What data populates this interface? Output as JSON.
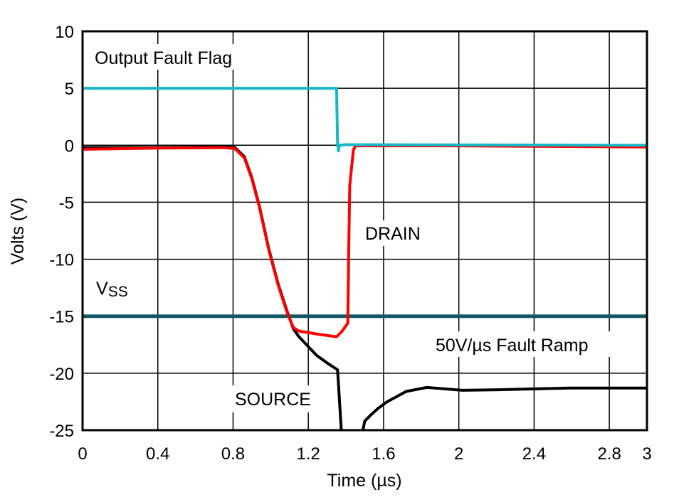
{
  "chart_data": {
    "type": "line",
    "title": "",
    "xlabel": "Time (µs)",
    "ylabel": "Volts (V)",
    "xlim": [
      0,
      3
    ],
    "ylim": [
      -25,
      10
    ],
    "grid": true,
    "x_ticks": [
      {
        "value": 0,
        "label": "0"
      },
      {
        "value": 0.4,
        "label": "0.4"
      },
      {
        "value": 0.8,
        "label": "0.8"
      },
      {
        "value": 1.2,
        "label": "1.2"
      },
      {
        "value": 1.6,
        "label": "1.6"
      },
      {
        "value": 2,
        "label": "2"
      },
      {
        "value": 2.4,
        "label": "2.4"
      },
      {
        "value": 2.8,
        "label": "2.8"
      },
      {
        "value": 3,
        "label": "3"
      }
    ],
    "y_ticks": [
      {
        "value": 10,
        "label": "10"
      },
      {
        "value": 5,
        "label": "5"
      },
      {
        "value": 0,
        "label": "0"
      },
      {
        "value": -5,
        "label": "-5"
      },
      {
        "value": -10,
        "label": "-10"
      },
      {
        "value": -15,
        "label": "-15"
      },
      {
        "value": -20,
        "label": "-20"
      },
      {
        "value": -25,
        "label": "-25"
      }
    ],
    "series": [
      {
        "name": "SOURCE",
        "color": "#000000",
        "points": [
          [
            0,
            -0.2
          ],
          [
            0.4,
            -0.2
          ],
          [
            0.75,
            -0.15
          ],
          [
            0.81,
            -0.2
          ],
          [
            0.86,
            -1.0
          ],
          [
            0.9,
            -2.85
          ],
          [
            0.94,
            -5.35
          ],
          [
            0.99,
            -9.1
          ],
          [
            1.04,
            -12.2
          ],
          [
            1.09,
            -14.7
          ],
          [
            1.12,
            -16.1
          ],
          [
            1.15,
            -16.8
          ],
          [
            1.19,
            -17.5
          ],
          [
            1.245,
            -18.45
          ],
          [
            1.3,
            -19.1
          ],
          [
            1.355,
            -19.7
          ],
          [
            1.36,
            -20.9
          ],
          [
            1.375,
            -25
          ]
        ]
      },
      {
        "name": "SOURCE",
        "color": "#000000",
        "points": [
          [
            1.49,
            -25
          ],
          [
            1.5,
            -24.2
          ],
          [
            1.53,
            -23.7
          ],
          [
            1.57,
            -23.1
          ],
          [
            1.62,
            -22.5
          ],
          [
            1.72,
            -21.6
          ],
          [
            1.83,
            -21.25
          ],
          [
            2.02,
            -21.5
          ],
          [
            2.21,
            -21.45
          ],
          [
            2.59,
            -21.3
          ],
          [
            3,
            -21.3
          ]
        ]
      },
      {
        "name": "DRAIN",
        "color": "#ff0000",
        "points": [
          [
            0,
            -0.35
          ],
          [
            0.4,
            -0.25
          ],
          [
            0.75,
            -0.2
          ],
          [
            0.81,
            -0.3
          ],
          [
            0.86,
            -1.1
          ],
          [
            0.9,
            -2.95
          ],
          [
            0.94,
            -5.45
          ],
          [
            0.99,
            -9.2
          ],
          [
            1.04,
            -12.3
          ],
          [
            1.09,
            -14.8
          ],
          [
            1.12,
            -16.0
          ],
          [
            1.15,
            -16.3
          ],
          [
            1.26,
            -16.6
          ],
          [
            1.35,
            -16.8
          ],
          [
            1.38,
            -16.3
          ],
          [
            1.41,
            -15.6
          ],
          [
            1.415,
            -9.1
          ],
          [
            1.42,
            -3.5
          ],
          [
            1.44,
            -0.4
          ],
          [
            1.45,
            -0.05
          ],
          [
            2,
            -0.05
          ],
          [
            3,
            -0.15
          ]
        ]
      },
      {
        "name": "Output Fault Flag",
        "color": "#17b7c9",
        "points": [
          [
            0,
            5
          ],
          [
            1.35,
            5
          ],
          [
            1.355,
            0.3
          ],
          [
            1.36,
            -0.5
          ],
          [
            1.365,
            0
          ],
          [
            1.4,
            0.05
          ],
          [
            3,
            0
          ]
        ]
      },
      {
        "name": "VSS",
        "color": "#145868",
        "points": [
          [
            0,
            -15
          ],
          [
            3,
            -15
          ]
        ]
      }
    ],
    "annotations": {
      "fault_flag": "Output Fault Flag",
      "drain": "DRAIN",
      "vss_main": "V",
      "vss_sub": "SS",
      "ramp": "50V/µs Fault Ramp",
      "source": "SOURCE"
    }
  }
}
